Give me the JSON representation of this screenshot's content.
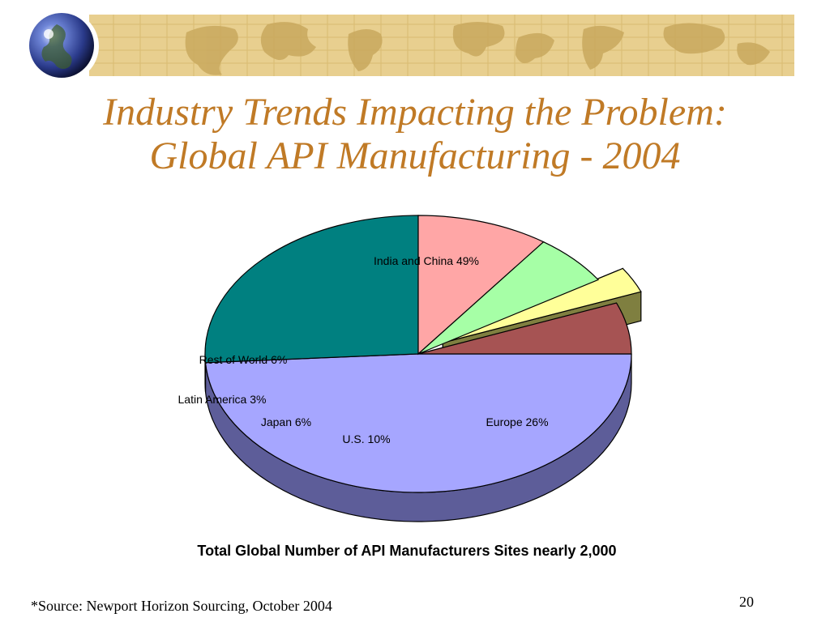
{
  "slide": {
    "title_line1": "Industry Trends Impacting the Problem:",
    "title_line2": "Global API Manufacturing - 2004",
    "caption": "Total Global Number of API Manufacturers Sites nearly 2,000",
    "source": "*Source:  Newport Horizon Sourcing, October 2004",
    "page_number": "20"
  },
  "banner": {
    "color": "#e8cf8f",
    "globe_icon": "globe-icon",
    "map_graphic": "world-map-graphic"
  },
  "chart_data": {
    "type": "pie",
    "title": "",
    "exploded": [
      "Latin America"
    ],
    "slices": [
      {
        "label": "India and China 49%",
        "name": "India and China",
        "value": 49,
        "color": "#a6a6ff",
        "side_color": "#5d5d99"
      },
      {
        "label": "Europe 26%",
        "name": "Europe",
        "value": 26,
        "color": "#008080",
        "side_color": "#004040"
      },
      {
        "label": "U.S. 10%",
        "name": "U.S.",
        "value": 10,
        "color": "#ffa6a6",
        "side_color": "#7f5353"
      },
      {
        "label": "Japan 6%",
        "name": "Japan",
        "value": 6,
        "color": "#a6ffa6",
        "side_color": "#537f53"
      },
      {
        "label": "Latin America 3%",
        "name": "Latin America",
        "value": 3,
        "color": "#ffff99",
        "side_color": "#7f7f40"
      },
      {
        "label": "Rest of World 6%",
        "name": "Rest of World",
        "value": 6,
        "color": "#a65353",
        "side_color": "#6a3535"
      }
    ]
  }
}
